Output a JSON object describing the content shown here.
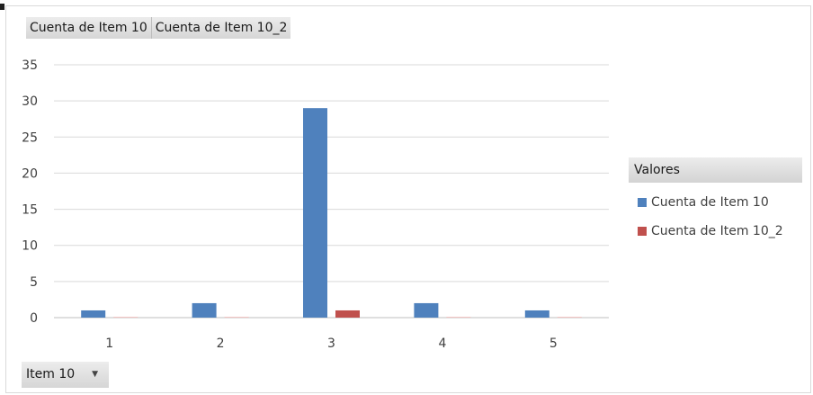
{
  "field_buttons": [
    {
      "label": "Cuenta de Item 10"
    },
    {
      "label": "Cuenta de Item 10_2"
    }
  ],
  "legend": {
    "title": "Valores"
  },
  "axis_filter": {
    "label": "Item 10",
    "icon": "chevron-down-icon"
  },
  "chart_data": {
    "type": "bar",
    "title": "",
    "xlabel": "",
    "ylabel": "",
    "categories": [
      "1",
      "2",
      "3",
      "4",
      "5"
    ],
    "series": [
      {
        "name": "Cuenta de Item 10",
        "color": "#4f81bd",
        "values": [
          1,
          2,
          29,
          2,
          1
        ]
      },
      {
        "name": "Cuenta de Item 10_2",
        "color": "#c0504d",
        "values": [
          0,
          0,
          1,
          0,
          0
        ]
      }
    ],
    "ylim": [
      0,
      35
    ],
    "yticks": [
      0,
      5,
      10,
      15,
      20,
      25,
      30,
      35
    ],
    "grid": true,
    "legend_position": "right"
  }
}
